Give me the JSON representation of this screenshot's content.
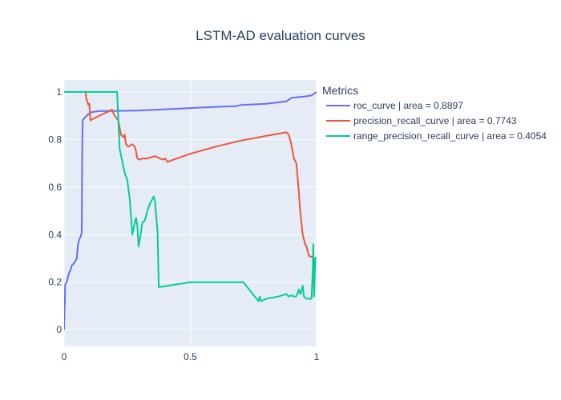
{
  "chart_data": {
    "type": "line",
    "title": "LSTM-AD evaluation curves",
    "xlabel": "",
    "ylabel": "",
    "xlim": [
      0,
      1
    ],
    "ylim": [
      -0.07,
      1.05
    ],
    "x_ticks": [
      0,
      0.5,
      1
    ],
    "x_tick_labels": [
      "0",
      "0.5",
      "1"
    ],
    "y_ticks": [
      0,
      0.2,
      0.4,
      0.6,
      0.8,
      1
    ],
    "y_tick_labels": [
      "0",
      "0.2",
      "0.4",
      "0.6",
      "0.8",
      "1"
    ],
    "grid": true,
    "legend": {
      "title": "Metrics",
      "position": "top-right outside"
    },
    "series": [
      {
        "name": "roc_curve | area = 0.8897",
        "color": "#636efa",
        "points": [
          [
            0,
            0
          ],
          [
            0.002,
            0.1
          ],
          [
            0.003,
            0.11
          ],
          [
            0.004,
            0.19
          ],
          [
            0.01,
            0.2
          ],
          [
            0.015,
            0.22
          ],
          [
            0.02,
            0.24
          ],
          [
            0.025,
            0.25
          ],
          [
            0.03,
            0.27
          ],
          [
            0.04,
            0.28
          ],
          [
            0.05,
            0.3
          ],
          [
            0.055,
            0.36
          ],
          [
            0.06,
            0.38
          ],
          [
            0.065,
            0.39
          ],
          [
            0.07,
            0.41
          ],
          [
            0.072,
            0.8
          ],
          [
            0.074,
            0.88
          ],
          [
            0.08,
            0.89
          ],
          [
            0.09,
            0.9
          ],
          [
            0.1,
            0.91
          ],
          [
            0.11,
            0.915
          ],
          [
            0.13,
            0.918
          ],
          [
            0.15,
            0.92
          ],
          [
            0.2,
            0.92
          ],
          [
            0.3,
            0.922
          ],
          [
            0.4,
            0.927
          ],
          [
            0.5,
            0.932
          ],
          [
            0.6,
            0.937
          ],
          [
            0.68,
            0.94
          ],
          [
            0.7,
            0.945
          ],
          [
            0.8,
            0.95
          ],
          [
            0.88,
            0.96
          ],
          [
            0.9,
            0.975
          ],
          [
            0.95,
            0.98
          ],
          [
            0.98,
            0.985
          ],
          [
            1.0,
            1.0
          ]
        ]
      },
      {
        "name": "precision_recall_curve | area = 0.7743",
        "color": "#ef553b",
        "points": [
          [
            0.085,
            1.0
          ],
          [
            0.088,
            0.97
          ],
          [
            0.092,
            0.96
          ],
          [
            0.096,
            0.945
          ],
          [
            0.1,
            0.95
          ],
          [
            0.104,
            0.88
          ],
          [
            0.12,
            0.89
          ],
          [
            0.14,
            0.9
          ],
          [
            0.16,
            0.91
          ],
          [
            0.18,
            0.92
          ],
          [
            0.19,
            0.925
          ],
          [
            0.2,
            0.9
          ],
          [
            0.215,
            0.88
          ],
          [
            0.225,
            0.82
          ],
          [
            0.235,
            0.81
          ],
          [
            0.24,
            0.82
          ],
          [
            0.245,
            0.78
          ],
          [
            0.255,
            0.77
          ],
          [
            0.27,
            0.78
          ],
          [
            0.28,
            0.77
          ],
          [
            0.285,
            0.75
          ],
          [
            0.29,
            0.72
          ],
          [
            0.3,
            0.715
          ],
          [
            0.31,
            0.72
          ],
          [
            0.32,
            0.72
          ],
          [
            0.33,
            0.72
          ],
          [
            0.36,
            0.73
          ],
          [
            0.38,
            0.72
          ],
          [
            0.39,
            0.715
          ],
          [
            0.4,
            0.72
          ],
          [
            0.41,
            0.705
          ],
          [
            0.42,
            0.71
          ],
          [
            0.5,
            0.74
          ],
          [
            0.6,
            0.77
          ],
          [
            0.7,
            0.795
          ],
          [
            0.8,
            0.815
          ],
          [
            0.88,
            0.83
          ],
          [
            0.89,
            0.82
          ],
          [
            0.9,
            0.78
          ],
          [
            0.91,
            0.72
          ],
          [
            0.92,
            0.7
          ],
          [
            0.93,
            0.58
          ],
          [
            0.935,
            0.5
          ],
          [
            0.945,
            0.4
          ],
          [
            0.955,
            0.36
          ],
          [
            0.96,
            0.35
          ],
          [
            0.965,
            0.33
          ],
          [
            0.97,
            0.31
          ],
          [
            0.985,
            0.305
          ],
          [
            0.99,
            0.29
          ],
          [
            0.995,
            0.3
          ],
          [
            1.0,
            0.305
          ]
        ]
      },
      {
        "name": "range_precision_recall_curve | area = 0.4054",
        "color": "#00cc96",
        "points": [
          [
            0,
            1.0
          ],
          [
            0.1,
            1.0
          ],
          [
            0.21,
            1.0
          ],
          [
            0.215,
            0.88
          ],
          [
            0.22,
            0.76
          ],
          [
            0.24,
            0.66
          ],
          [
            0.25,
            0.63
          ],
          [
            0.26,
            0.55
          ],
          [
            0.27,
            0.4
          ],
          [
            0.28,
            0.45
          ],
          [
            0.285,
            0.47
          ],
          [
            0.29,
            0.44
          ],
          [
            0.295,
            0.35
          ],
          [
            0.3,
            0.38
          ],
          [
            0.31,
            0.45
          ],
          [
            0.32,
            0.46
          ],
          [
            0.33,
            0.5
          ],
          [
            0.34,
            0.53
          ],
          [
            0.35,
            0.55
          ],
          [
            0.355,
            0.56
          ],
          [
            0.36,
            0.54
          ],
          [
            0.37,
            0.41
          ],
          [
            0.375,
            0.18
          ],
          [
            0.38,
            0.18
          ],
          [
            0.5,
            0.2
          ],
          [
            0.6,
            0.2
          ],
          [
            0.71,
            0.2
          ],
          [
            0.77,
            0.12
          ],
          [
            0.775,
            0.14
          ],
          [
            0.78,
            0.12
          ],
          [
            0.8,
            0.13
          ],
          [
            0.85,
            0.14
          ],
          [
            0.88,
            0.15
          ],
          [
            0.89,
            0.14
          ],
          [
            0.9,
            0.145
          ],
          [
            0.91,
            0.14
          ],
          [
            0.92,
            0.14
          ],
          [
            0.93,
            0.17
          ],
          [
            0.935,
            0.15
          ],
          [
            0.94,
            0.16
          ],
          [
            0.945,
            0.185
          ],
          [
            0.95,
            0.14
          ],
          [
            0.96,
            0.13
          ],
          [
            0.97,
            0.13
          ],
          [
            0.98,
            0.13
          ],
          [
            0.985,
            0.25
          ],
          [
            0.987,
            0.36
          ],
          [
            0.99,
            0.14
          ],
          [
            0.995,
            0.3
          ],
          [
            1.0,
            0.305
          ]
        ]
      }
    ]
  }
}
